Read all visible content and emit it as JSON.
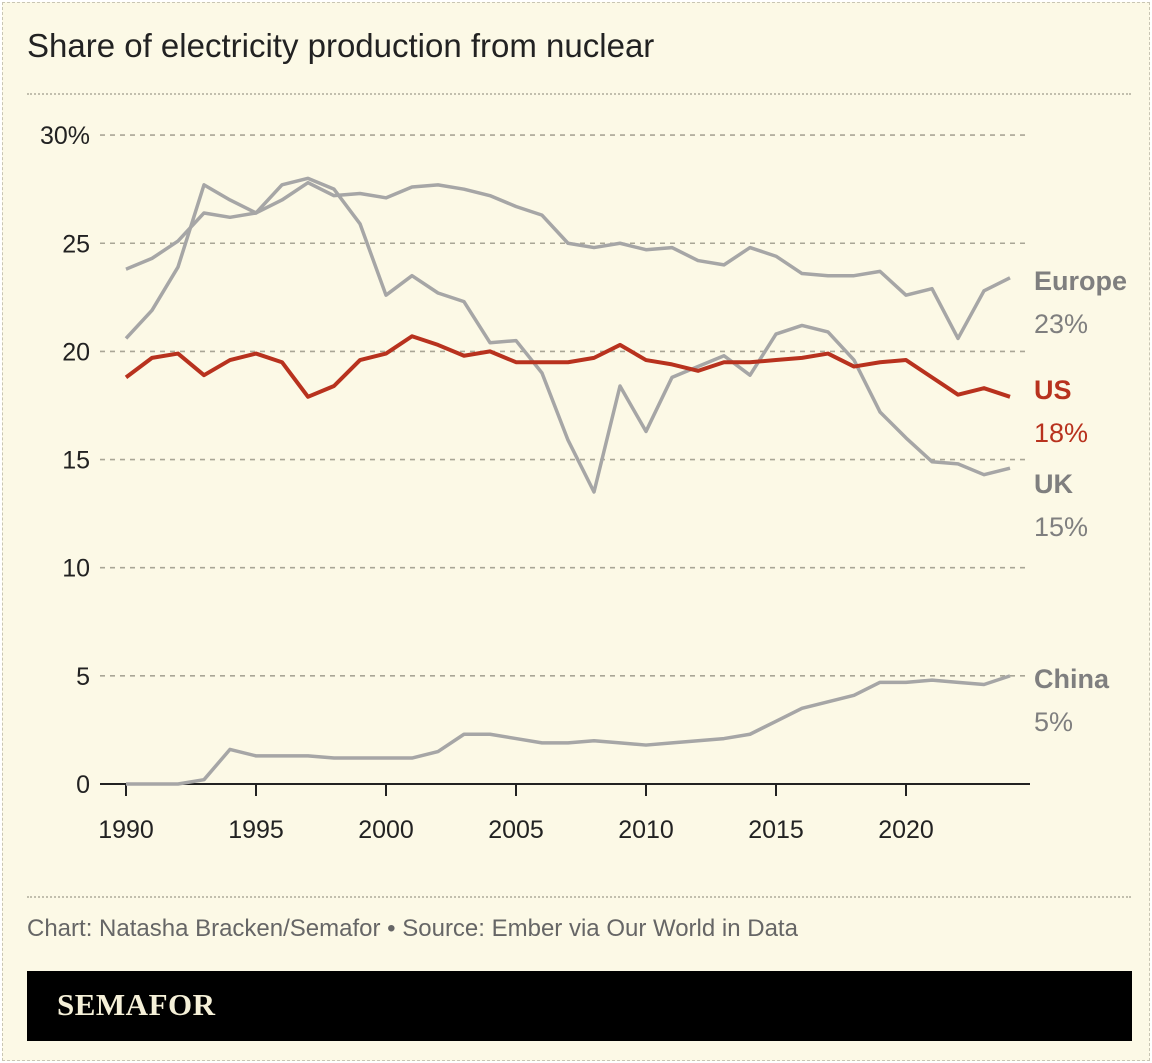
{
  "title": "Share of electricity production from nuclear",
  "credit": "Chart: Natasha Bracken/Semafor • Source: Ember via Our World in Data",
  "brand": "SEMAFOR",
  "chart_data": {
    "type": "line",
    "title": "Share of electricity production from nuclear",
    "xlim": [
      1990,
      2024
    ],
    "ylim": [
      0,
      30
    ],
    "grid": true,
    "x_ticks": [
      "1990",
      "1995",
      "2000",
      "2005",
      "2010",
      "2015",
      "2020"
    ],
    "y_ticks": [
      "0",
      "5",
      "10",
      "15",
      "20",
      "25",
      "30%"
    ],
    "x": [
      1990,
      1991,
      1992,
      1993,
      1994,
      1995,
      1996,
      1997,
      1998,
      1999,
      2000,
      2001,
      2002,
      2003,
      2004,
      2005,
      2006,
      2007,
      2008,
      2009,
      2010,
      2011,
      2012,
      2013,
      2014,
      2015,
      2016,
      2017,
      2018,
      2019,
      2020,
      2021,
      2022,
      2023,
      2024
    ],
    "series": [
      {
        "name": "Europe",
        "end_label": "23%",
        "color": "#a6a6a6",
        "label_color": "#7f7f7f",
        "values": [
          23.8,
          24.3,
          25.1,
          26.4,
          26.2,
          26.4,
          27.0,
          27.8,
          27.2,
          27.3,
          27.1,
          27.6,
          27.7,
          27.5,
          27.2,
          26.7,
          26.3,
          25.0,
          24.8,
          25.0,
          24.7,
          24.8,
          24.2,
          24.0,
          24.8,
          24.4,
          23.6,
          23.5,
          23.5,
          23.7,
          22.6,
          22.9,
          20.6,
          22.8,
          23.4
        ]
      },
      {
        "name": "UK",
        "end_label": "15%",
        "color": "#a6a6a6",
        "label_color": "#7f7f7f",
        "values": [
          20.6,
          21.9,
          23.9,
          27.7,
          27.0,
          26.4,
          27.7,
          28.0,
          27.5,
          25.9,
          22.6,
          23.5,
          22.7,
          22.3,
          20.4,
          20.5,
          19.0,
          15.9,
          13.5,
          18.4,
          16.3,
          18.8,
          19.3,
          19.8,
          18.9,
          20.8,
          21.2,
          20.9,
          19.6,
          17.2,
          16.0,
          14.9,
          14.8,
          14.3,
          14.6
        ]
      },
      {
        "name": "US",
        "end_label": "18%",
        "color": "#b8321e",
        "label_color": "#b8321e",
        "values": [
          18.8,
          19.7,
          19.9,
          18.9,
          19.6,
          19.9,
          19.5,
          17.9,
          18.4,
          19.6,
          19.9,
          20.7,
          20.3,
          19.8,
          20.0,
          19.5,
          19.5,
          19.5,
          19.7,
          20.3,
          19.6,
          19.4,
          19.1,
          19.5,
          19.5,
          19.6,
          19.7,
          19.9,
          19.3,
          19.5,
          19.6,
          18.8,
          18.0,
          18.3,
          17.9
        ]
      },
      {
        "name": "China",
        "end_label": "5%",
        "color": "#a6a6a6",
        "label_color": "#7f7f7f",
        "values": [
          0,
          0,
          0,
          0.2,
          1.6,
          1.3,
          1.3,
          1.3,
          1.2,
          1.2,
          1.2,
          1.2,
          1.5,
          2.3,
          2.3,
          2.1,
          1.9,
          1.9,
          2.0,
          1.9,
          1.8,
          1.9,
          2.0,
          2.1,
          2.3,
          2.9,
          3.5,
          3.8,
          4.1,
          4.7,
          4.7,
          4.8,
          4.7,
          4.6,
          5.0
        ]
      }
    ]
  }
}
